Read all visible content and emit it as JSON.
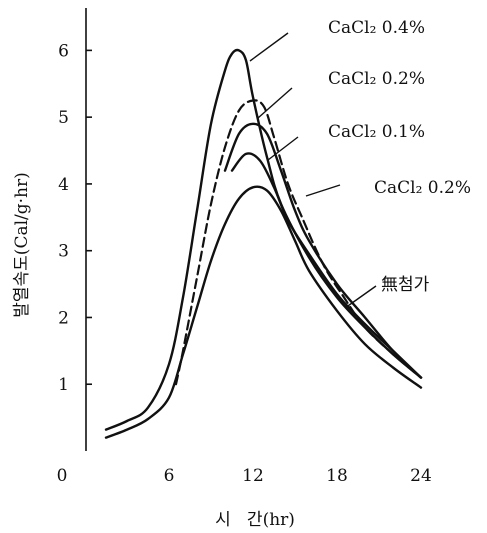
{
  "chart_data": {
    "type": "line",
    "ylabel": "발열속도(Cal/g·hr)",
    "xlabel": "시   간(hr)",
    "xlim": [
      0,
      26
    ],
    "ylim": [
      0,
      6.5
    ],
    "x_ticks": [
      0,
      6,
      12,
      18,
      24
    ],
    "y_ticks": [
      1,
      2,
      3,
      4,
      5,
      6
    ],
    "grid": false,
    "series": [
      {
        "name": "CaCl₂ 0.4%",
        "style": "solid",
        "points": [
          [
            1.5,
            0.32
          ],
          [
            3,
            0.45
          ],
          [
            4.5,
            0.65
          ],
          [
            6,
            1.3
          ],
          [
            7,
            2.3
          ],
          [
            8,
            3.6
          ],
          [
            9,
            4.9
          ],
          [
            10,
            5.7
          ],
          [
            10.5,
            5.95
          ],
          [
            11,
            6.0
          ],
          [
            11.5,
            5.85
          ],
          [
            12,
            5.3
          ],
          [
            13,
            4.4
          ],
          [
            14,
            3.7
          ],
          [
            16,
            2.9
          ],
          [
            18,
            2.3
          ],
          [
            20,
            1.85
          ],
          [
            22,
            1.45
          ],
          [
            24,
            1.1
          ]
        ]
      },
      {
        "name": "CaCl₂ 0.2%",
        "style": "dashed",
        "points": [
          [
            6.5,
            1.0
          ],
          [
            7,
            1.5
          ],
          [
            8,
            2.6
          ],
          [
            9,
            3.7
          ],
          [
            10,
            4.55
          ],
          [
            11,
            5.1
          ],
          [
            12,
            5.25
          ],
          [
            12.8,
            5.15
          ],
          [
            13.5,
            4.7
          ],
          [
            14.5,
            4.0
          ],
          [
            15.5,
            3.5
          ],
          [
            17,
            2.8
          ],
          [
            18.5,
            2.3
          ],
          [
            20,
            1.85
          ],
          [
            22,
            1.45
          ],
          [
            24,
            1.1
          ]
        ]
      },
      {
        "name": "CaCl₂ 0.1%",
        "style": "solid",
        "points": [
          [
            10,
            4.2
          ],
          [
            11,
            4.75
          ],
          [
            12,
            4.9
          ],
          [
            13,
            4.75
          ],
          [
            14,
            4.2
          ],
          [
            15,
            3.6
          ],
          [
            16,
            3.15
          ],
          [
            18,
            2.5
          ],
          [
            20,
            2.0
          ],
          [
            22,
            1.5
          ],
          [
            24,
            1.1
          ]
        ]
      },
      {
        "name": "CaCl₂ 0.2%",
        "style": "solid",
        "points": [
          [
            10.5,
            4.2
          ],
          [
            11.5,
            4.45
          ],
          [
            12.5,
            4.35
          ],
          [
            13.5,
            3.95
          ],
          [
            14.5,
            3.45
          ],
          [
            16,
            2.95
          ],
          [
            18,
            2.35
          ],
          [
            20,
            1.9
          ],
          [
            22,
            1.5
          ],
          [
            24,
            1.1
          ]
        ]
      },
      {
        "name": "無첨가",
        "style": "solid",
        "points": [
          [
            1.5,
            0.2
          ],
          [
            3,
            0.32
          ],
          [
            4.5,
            0.48
          ],
          [
            6,
            0.8
          ],
          [
            7,
            1.45
          ],
          [
            8,
            2.15
          ],
          [
            9,
            2.85
          ],
          [
            10,
            3.4
          ],
          [
            11,
            3.78
          ],
          [
            12,
            3.95
          ],
          [
            13,
            3.9
          ],
          [
            14,
            3.6
          ],
          [
            15,
            3.15
          ],
          [
            16,
            2.7
          ],
          [
            18,
            2.1
          ],
          [
            20,
            1.6
          ],
          [
            22,
            1.25
          ],
          [
            24,
            0.95
          ]
        ]
      }
    ],
    "annotations": [
      {
        "text": "CaCl₂ 0.4%",
        "series": 0
      },
      {
        "text": "CaCl₂ 0.2%",
        "series": 1
      },
      {
        "text": "CaCl₂ 0.1%",
        "series": 2
      },
      {
        "text": "CaCl₂ 0.2%",
        "series": 3
      },
      {
        "text": "無첨가",
        "series": 4
      }
    ]
  }
}
